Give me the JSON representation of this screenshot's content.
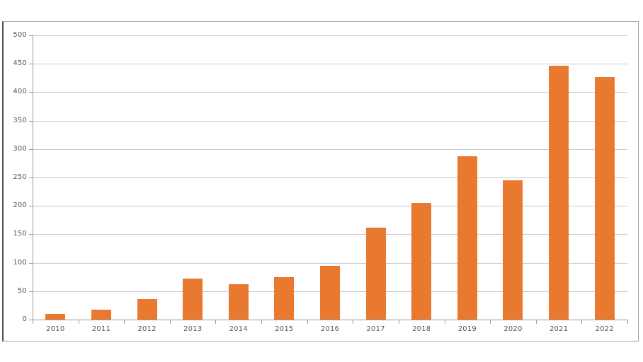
{
  "chart_data": {
    "type": "bar",
    "title": "",
    "xlabel": "",
    "ylabel": "",
    "categories": [
      "2010",
      "2011",
      "2012",
      "2013",
      "2014",
      "2015",
      "2016",
      "2017",
      "2018",
      "2019",
      "2020",
      "2021",
      "2022"
    ],
    "values": [
      10,
      18,
      36,
      72,
      62,
      75,
      95,
      162,
      205,
      287,
      245,
      447,
      427
    ],
    "ylim": [
      0,
      500
    ],
    "ytick_step": 50,
    "ytick_labels": [
      "0",
      "50",
      "100",
      "150",
      "200",
      "250",
      "300",
      "350",
      "400",
      "450",
      "500"
    ],
    "grid": true,
    "legend": false,
    "bar_color": "#e8792f",
    "gridline_color": "#c9c9c9",
    "axis_color": "#999999",
    "label_color": "#585858",
    "frame_border_color": "#a6a6a6"
  }
}
